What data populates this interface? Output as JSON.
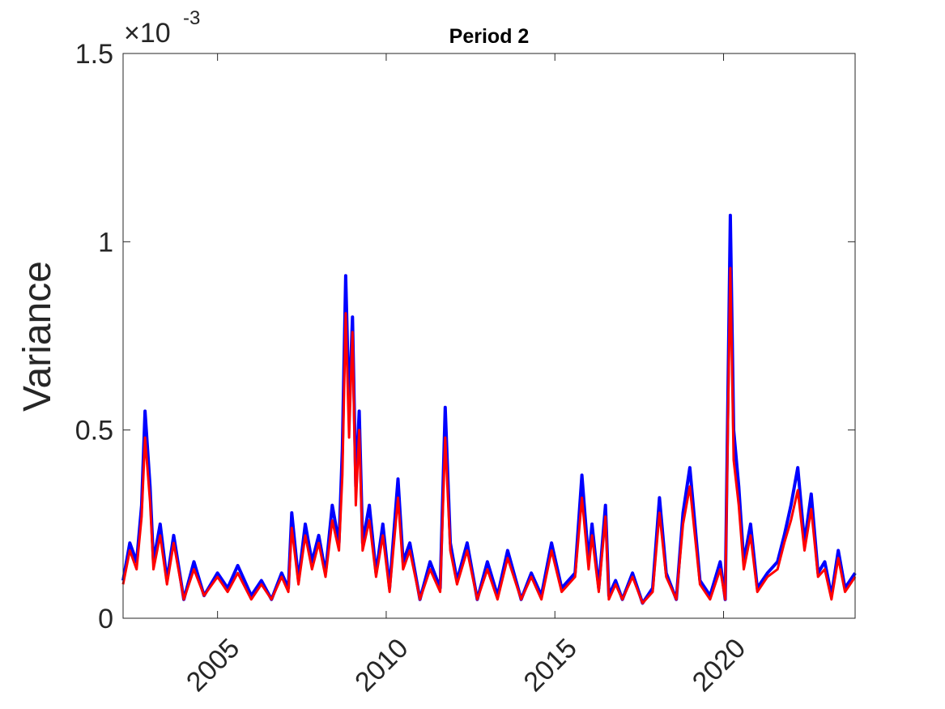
{
  "chart_data": {
    "type": "line",
    "title": "Period 2",
    "xlabel": "",
    "ylabel": "Variance",
    "y_multiplier_label": "×10",
    "y_multiplier_exponent": "-3",
    "xlim": [
      2002.2,
      2023.9
    ],
    "ylim": [
      0,
      1.5
    ],
    "x_ticks": [
      2005,
      2010,
      2015,
      2020
    ],
    "x_tick_labels": [
      "2005",
      "2010",
      "2015",
      "2020"
    ],
    "y_ticks": [
      0,
      0.5,
      1,
      1.5
    ],
    "y_tick_labels": [
      "0",
      "0.5",
      "1",
      "1.5"
    ],
    "grid": false,
    "legend": "none",
    "colors": {
      "series_1": "#0000ff",
      "series_2": "#ff0000",
      "axes": "#262626"
    },
    "series": [
      {
        "color": "#0000ff",
        "x": [
          2002.2,
          2002.4,
          2002.6,
          2002.75,
          2002.85,
          2003.0,
          2003.1,
          2003.3,
          2003.5,
          2003.7,
          2004.0,
          2004.3,
          2004.6,
          2005.0,
          2005.3,
          2005.6,
          2006.0,
          2006.3,
          2006.6,
          2006.9,
          2007.1,
          2007.2,
          2007.4,
          2007.6,
          2007.8,
          2008.0,
          2008.2,
          2008.4,
          2008.6,
          2008.7,
          2008.8,
          2008.9,
          2009.0,
          2009.1,
          2009.2,
          2009.3,
          2009.5,
          2009.7,
          2009.9,
          2010.1,
          2010.35,
          2010.5,
          2010.7,
          2011.0,
          2011.3,
          2011.6,
          2011.75,
          2011.9,
          2012.1,
          2012.4,
          2012.7,
          2013.0,
          2013.3,
          2013.6,
          2014.0,
          2014.3,
          2014.6,
          2014.9,
          2015.2,
          2015.6,
          2015.8,
          2016.0,
          2016.1,
          2016.3,
          2016.5,
          2016.6,
          2016.8,
          2017.0,
          2017.3,
          2017.6,
          2017.9,
          2018.1,
          2018.3,
          2018.6,
          2018.8,
          2019.0,
          2019.3,
          2019.6,
          2019.9,
          2020.05,
          2020.2,
          2020.3,
          2020.45,
          2020.6,
          2020.8,
          2021.0,
          2021.3,
          2021.6,
          2021.8,
          2022.0,
          2022.2,
          2022.4,
          2022.6,
          2022.8,
          2023.0,
          2023.2,
          2023.4,
          2023.6,
          2023.9
        ],
        "y": [
          0.1,
          0.2,
          0.15,
          0.3,
          0.55,
          0.35,
          0.15,
          0.25,
          0.1,
          0.22,
          0.05,
          0.15,
          0.06,
          0.12,
          0.08,
          0.14,
          0.06,
          0.1,
          0.05,
          0.12,
          0.08,
          0.28,
          0.1,
          0.25,
          0.15,
          0.22,
          0.12,
          0.3,
          0.2,
          0.45,
          0.91,
          0.55,
          0.8,
          0.35,
          0.55,
          0.2,
          0.3,
          0.12,
          0.25,
          0.08,
          0.37,
          0.15,
          0.2,
          0.05,
          0.15,
          0.08,
          0.56,
          0.2,
          0.1,
          0.2,
          0.05,
          0.15,
          0.06,
          0.18,
          0.05,
          0.12,
          0.06,
          0.2,
          0.08,
          0.12,
          0.38,
          0.15,
          0.25,
          0.08,
          0.3,
          0.06,
          0.1,
          0.05,
          0.12,
          0.04,
          0.08,
          0.32,
          0.12,
          0.05,
          0.28,
          0.4,
          0.1,
          0.06,
          0.15,
          0.05,
          1.07,
          0.5,
          0.35,
          0.15,
          0.25,
          0.08,
          0.12,
          0.15,
          0.22,
          0.3,
          0.4,
          0.2,
          0.33,
          0.12,
          0.15,
          0.06,
          0.18,
          0.08,
          0.12
        ]
      },
      {
        "color": "#ff0000",
        "x": [
          2002.2,
          2002.4,
          2002.6,
          2002.75,
          2002.85,
          2003.0,
          2003.1,
          2003.3,
          2003.5,
          2003.7,
          2004.0,
          2004.3,
          2004.6,
          2005.0,
          2005.3,
          2005.6,
          2006.0,
          2006.3,
          2006.6,
          2006.9,
          2007.1,
          2007.2,
          2007.4,
          2007.6,
          2007.8,
          2008.0,
          2008.2,
          2008.4,
          2008.6,
          2008.7,
          2008.8,
          2008.9,
          2009.0,
          2009.1,
          2009.2,
          2009.3,
          2009.5,
          2009.7,
          2009.9,
          2010.1,
          2010.35,
          2010.5,
          2010.7,
          2011.0,
          2011.3,
          2011.6,
          2011.75,
          2011.9,
          2012.1,
          2012.4,
          2012.7,
          2013.0,
          2013.3,
          2013.6,
          2014.0,
          2014.3,
          2014.6,
          2014.9,
          2015.2,
          2015.6,
          2015.8,
          2016.0,
          2016.1,
          2016.3,
          2016.5,
          2016.6,
          2016.8,
          2017.0,
          2017.3,
          2017.6,
          2017.9,
          2018.1,
          2018.3,
          2018.6,
          2018.8,
          2019.0,
          2019.3,
          2019.6,
          2019.9,
          2020.05,
          2020.2,
          2020.3,
          2020.45,
          2020.6,
          2020.8,
          2021.0,
          2021.3,
          2021.6,
          2021.8,
          2022.0,
          2022.2,
          2022.4,
          2022.6,
          2022.8,
          2023.0,
          2023.2,
          2023.4,
          2023.6,
          2023.9
        ],
        "y": [
          0.09,
          0.18,
          0.13,
          0.27,
          0.48,
          0.31,
          0.13,
          0.22,
          0.09,
          0.2,
          0.05,
          0.13,
          0.06,
          0.11,
          0.07,
          0.12,
          0.05,
          0.09,
          0.05,
          0.11,
          0.07,
          0.24,
          0.09,
          0.22,
          0.13,
          0.2,
          0.11,
          0.26,
          0.18,
          0.38,
          0.81,
          0.48,
          0.76,
          0.3,
          0.5,
          0.18,
          0.26,
          0.11,
          0.22,
          0.07,
          0.32,
          0.13,
          0.18,
          0.05,
          0.13,
          0.07,
          0.48,
          0.18,
          0.09,
          0.18,
          0.05,
          0.13,
          0.05,
          0.16,
          0.05,
          0.11,
          0.05,
          0.18,
          0.07,
          0.11,
          0.32,
          0.13,
          0.22,
          0.07,
          0.27,
          0.05,
          0.09,
          0.05,
          0.11,
          0.04,
          0.07,
          0.28,
          0.11,
          0.05,
          0.25,
          0.35,
          0.09,
          0.05,
          0.13,
          0.05,
          0.93,
          0.42,
          0.3,
          0.13,
          0.22,
          0.07,
          0.11,
          0.13,
          0.2,
          0.26,
          0.34,
          0.18,
          0.29,
          0.11,
          0.13,
          0.05,
          0.16,
          0.07,
          0.11
        ]
      }
    ]
  }
}
